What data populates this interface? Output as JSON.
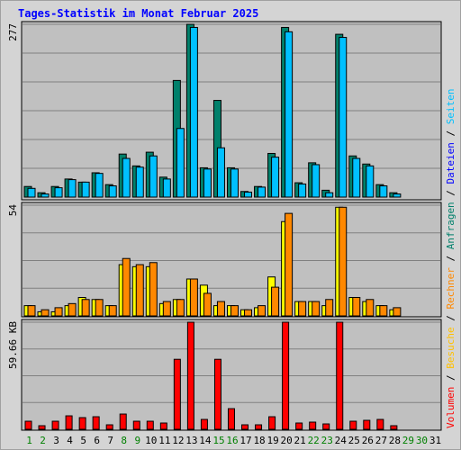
{
  "title": "Tages-Statistik im Monat Februar 2025",
  "colors": {
    "background": "#d4d4d4",
    "plot_bg": "#c0c0c0",
    "gridline": "#808080",
    "title": "#0000ff",
    "weekday_label": "#000000",
    "weekend_label": "#008000",
    "anfragen": "#00806b",
    "dateien": "#00e0ff",
    "seiten": "#00c0ff",
    "besuche": "#ffff00",
    "rechner": "#ff8800",
    "volumen": "#ff0000"
  },
  "legend": {
    "top": [
      {
        "text": "Anfragen",
        "color": "#00806b"
      },
      {
        "text": "Dateien",
        "color": "#0000ff"
      },
      {
        "text": "Seiten",
        "color": "#00c0ff"
      }
    ],
    "middle": [
      {
        "text": "Besuche",
        "color": "#ffc000"
      },
      {
        "text": "Rechner",
        "color": "#ff8800"
      }
    ],
    "bottom": [
      {
        "text": "Volumen",
        "color": "#ff0000"
      }
    ],
    "separator": " / "
  },
  "chart_data": [
    {
      "type": "bar",
      "panel": "top",
      "ymax_label": "277",
      "ylim": [
        0,
        277
      ],
      "grid": true,
      "x": [
        1,
        2,
        3,
        4,
        5,
        6,
        7,
        8,
        9,
        10,
        11,
        12,
        13,
        14,
        15,
        16,
        17,
        18,
        19,
        20,
        21,
        22,
        23,
        24,
        25,
        26,
        27,
        28,
        29,
        30,
        31
      ],
      "series": [
        {
          "name": "Anfragen",
          "color": "#00806b",
          "values": [
            17,
            7,
            17,
            29,
            24,
            39,
            20,
            69,
            50,
            72,
            32,
            187,
            277,
            47,
            155,
            47,
            9,
            17,
            70,
            272,
            23,
            55,
            11,
            261,
            66,
            53,
            20,
            7,
            0,
            0,
            0
          ]
        },
        {
          "name": "Seiten",
          "color": "#00c0ff",
          "values": [
            14,
            5,
            15,
            28,
            24,
            38,
            18,
            62,
            48,
            66,
            29,
            110,
            272,
            45,
            79,
            45,
            8,
            16,
            64,
            265,
            21,
            52,
            7,
            256,
            62,
            50,
            18,
            5,
            0,
            0,
            0
          ]
        }
      ]
    },
    {
      "type": "bar",
      "panel": "middle",
      "ymax_label": "54",
      "ylim": [
        0,
        54
      ],
      "grid": true,
      "x": [
        1,
        2,
        3,
        4,
        5,
        6,
        7,
        8,
        9,
        10,
        11,
        12,
        13,
        14,
        15,
        16,
        17,
        18,
        19,
        20,
        21,
        22,
        23,
        24,
        25,
        26,
        27,
        28,
        29,
        30,
        31
      ],
      "series": [
        {
          "name": "Besuche",
          "color": "#ffff00",
          "values": [
            5,
            2,
            2,
            5,
            9,
            8,
            5,
            25,
            24,
            24,
            6,
            8,
            18,
            15,
            5,
            5,
            3,
            4,
            19,
            46,
            7,
            7,
            5,
            53,
            9,
            7,
            5,
            3,
            0,
            0,
            0
          ]
        },
        {
          "name": "Rechner",
          "color": "#ff8800",
          "values": [
            5,
            3,
            4,
            6,
            8,
            8,
            5,
            28,
            25,
            26,
            7,
            8,
            18,
            11,
            7,
            5,
            3,
            5,
            14,
            50,
            7,
            7,
            8,
            53,
            9,
            8,
            5,
            4,
            0,
            0,
            0
          ]
        }
      ]
    },
    {
      "type": "bar",
      "panel": "bottom",
      "ymax_label": "59.66 KB",
      "ylim": [
        0,
        59.66
      ],
      "grid": true,
      "x": [
        1,
        2,
        3,
        4,
        5,
        6,
        7,
        8,
        9,
        10,
        11,
        12,
        13,
        14,
        15,
        16,
        17,
        18,
        19,
        20,
        21,
        22,
        23,
        24,
        25,
        26,
        27,
        28,
        29,
        30,
        31
      ],
      "series": [
        {
          "name": "Volumen",
          "color": "#ff0000",
          "values": [
            4.5,
            2,
            4.5,
            7.5,
            6.5,
            7,
            2.5,
            8.5,
            4.5,
            4.5,
            3.5,
            39,
            59.66,
            5.5,
            39,
            11.5,
            2.5,
            2.5,
            7,
            59.66,
            3.5,
            4,
            3,
            59.66,
            4.5,
            5,
            5.5,
            2,
            0,
            0,
            0
          ]
        }
      ]
    }
  ],
  "x_labels": [
    {
      "text": "1",
      "weekend": true
    },
    {
      "text": "2",
      "weekend": true
    },
    {
      "text": "3",
      "weekend": false
    },
    {
      "text": "4",
      "weekend": false
    },
    {
      "text": "5",
      "weekend": false
    },
    {
      "text": "6",
      "weekend": false
    },
    {
      "text": "7",
      "weekend": false
    },
    {
      "text": "8",
      "weekend": true
    },
    {
      "text": "9",
      "weekend": true
    },
    {
      "text": "10",
      "weekend": false
    },
    {
      "text": "11",
      "weekend": false
    },
    {
      "text": "12",
      "weekend": false
    },
    {
      "text": "13",
      "weekend": false
    },
    {
      "text": "14",
      "weekend": false
    },
    {
      "text": "15",
      "weekend": true
    },
    {
      "text": "16",
      "weekend": true
    },
    {
      "text": "17",
      "weekend": false
    },
    {
      "text": "18",
      "weekend": false
    },
    {
      "text": "19",
      "weekend": false
    },
    {
      "text": "20",
      "weekend": false
    },
    {
      "text": "21",
      "weekend": false
    },
    {
      "text": "22",
      "weekend": true
    },
    {
      "text": "23",
      "weekend": true
    },
    {
      "text": "24",
      "weekend": false
    },
    {
      "text": "25",
      "weekend": false
    },
    {
      "text": "26",
      "weekend": false
    },
    {
      "text": "27",
      "weekend": false
    },
    {
      "text": "28",
      "weekend": false
    },
    {
      "text": "29",
      "weekend": true
    },
    {
      "text": "30",
      "weekend": true
    },
    {
      "text": "31",
      "weekend": false
    }
  ]
}
